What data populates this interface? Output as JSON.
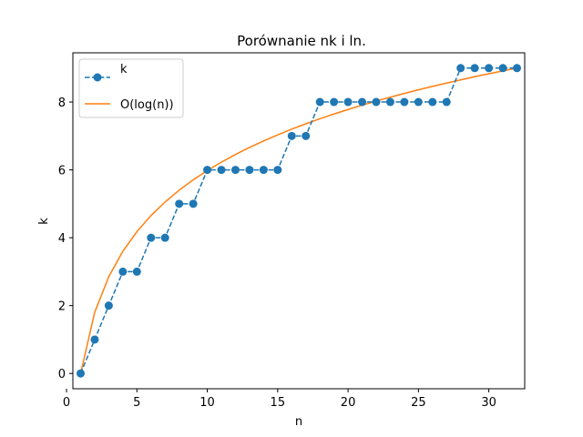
{
  "chart_data": {
    "type": "line",
    "title": "Porównanie nk i ln.",
    "xlabel": "n",
    "ylabel": "k",
    "xlim": [
      0.45,
      32.55
    ],
    "ylim": [
      -0.45,
      9.45
    ],
    "xticks": [
      0,
      5,
      10,
      15,
      20,
      25,
      30
    ],
    "yticks": [
      0,
      2,
      4,
      6,
      8
    ],
    "grid": false,
    "legend_position": "upper-left",
    "series": [
      {
        "name": "k",
        "style": "dashed-markers",
        "color": "#1f77b4",
        "x": [
          1,
          2,
          3,
          4,
          5,
          6,
          7,
          8,
          9,
          10,
          11,
          12,
          13,
          14,
          15,
          16,
          17,
          18,
          19,
          20,
          21,
          22,
          23,
          24,
          25,
          26,
          27,
          28,
          29,
          30,
          31,
          32
        ],
        "values": [
          0,
          1,
          2,
          3,
          3,
          4,
          4,
          5,
          5,
          6,
          6,
          6,
          6,
          6,
          6,
          7,
          7,
          8,
          8,
          8,
          8,
          8,
          8,
          8,
          8,
          8,
          8,
          9,
          9,
          9,
          9,
          9
        ]
      },
      {
        "name": "O(log(n))",
        "style": "solid",
        "color": "#ff7f0e",
        "x": [
          1,
          2,
          3,
          4,
          5,
          6,
          7,
          8,
          9,
          10,
          11,
          12,
          13,
          14,
          15,
          16,
          17,
          18,
          19,
          20,
          21,
          22,
          23,
          24,
          25,
          26,
          27,
          28,
          29,
          30,
          31,
          32
        ],
        "values": [
          0,
          1.8,
          2.853,
          3.6,
          4.18,
          4.653,
          5.053,
          5.4,
          5.706,
          5.98,
          6.227,
          6.453,
          6.661,
          6.853,
          7.032,
          7.2,
          7.357,
          7.506,
          7.646,
          7.78,
          7.906,
          8.027,
          8.142,
          8.253,
          8.359,
          8.461,
          8.559,
          8.653,
          8.745,
          8.833,
          8.918,
          9
        ]
      }
    ]
  }
}
